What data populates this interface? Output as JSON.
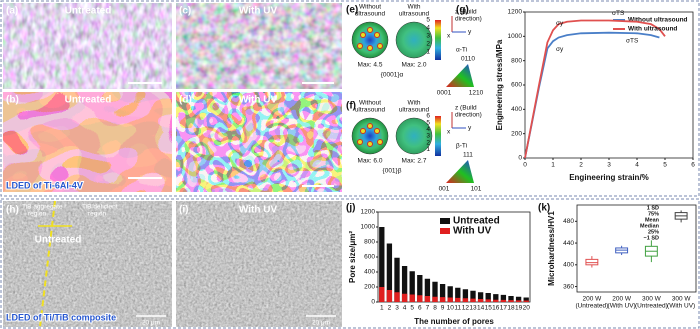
{
  "panels": {
    "a": {
      "label": "(a)",
      "text": "Untreated"
    },
    "b": {
      "label": "(b)",
      "text": "Untreated",
      "footer": "LDED of Ti-6Al-4V"
    },
    "c": {
      "label": "(c)",
      "text": "With UV"
    },
    "d": {
      "label": "(d)",
      "text": "With UV"
    },
    "e": {
      "label": "(e)",
      "left": [
        "Without",
        "ultrasound"
      ],
      "right": [
        "With",
        "ultrasound"
      ],
      "left_max": "Max: 4.5",
      "right_max": "Max: 2.0",
      "plane": "{0001}α",
      "colorbar": [
        1,
        2,
        3,
        4,
        5
      ],
      "axis_z": [
        "z (Build",
        "direction)"
      ],
      "axis_x": "x",
      "axis_y": "y",
      "phase": "α-Ti",
      "triangle": [
        "0110",
        "0001",
        "1210"
      ]
    },
    "f": {
      "label": "(f)",
      "left": [
        "Without",
        "ultrasound"
      ],
      "right": [
        "With",
        "ultrasound"
      ],
      "left_max": "Max: 6.0",
      "right_max": "Max: 2.7",
      "plane": "{001}β",
      "colorbar": [
        1,
        2,
        3,
        4,
        5,
        6
      ],
      "axis_z": [
        "z (Build",
        "direction)"
      ],
      "axis_x": "x",
      "axis_y": "y",
      "phase": "β-Ti",
      "triangle": [
        "111",
        "001",
        "101"
      ]
    },
    "h": {
      "label": "(h)",
      "left_region": [
        "TiB aggregate",
        "region"
      ],
      "right_region": [
        "TiB deficient",
        "region"
      ],
      "text": "Untreated",
      "scale": "20 μm",
      "footer": "LDED of Ti/TiB composite"
    },
    "i": {
      "label": "(i)",
      "text": "With UV",
      "scale": "20 μm"
    }
  },
  "chart_data": [
    {
      "type": "line",
      "label": "(g)",
      "x_label": "Engineering strain/%",
      "y_label": "Engineering stress/MPa",
      "xlim": [
        0,
        6
      ],
      "xticks": [
        0,
        1,
        2,
        3,
        4,
        5,
        6
      ],
      "ylim": [
        0,
        1200
      ],
      "yticks": [
        0,
        200,
        400,
        600,
        800,
        1000,
        1200
      ],
      "annotations": [
        "σy",
        "σTS",
        "σy",
        "σTS"
      ],
      "legend": "upper right",
      "series": [
        {
          "name": "Without ultrasound",
          "color": "#4a7fc8",
          "x": [
            0,
            0.5,
            0.8,
            1.0,
            1.2,
            1.5,
            2,
            3,
            4,
            4.5,
            4.8
          ],
          "values": [
            0,
            580,
            900,
            960,
            990,
            1010,
            1025,
            1030,
            1025,
            1010,
            990
          ]
        },
        {
          "name": "With ultrasound",
          "color": "#e0504f",
          "x": [
            0,
            0.5,
            0.8,
            1.0,
            1.2,
            1.5,
            2,
            3,
            4,
            4.5,
            4.8,
            5.0
          ],
          "values": [
            0,
            600,
            950,
            1050,
            1100,
            1120,
            1130,
            1130,
            1120,
            1100,
            1060,
            1000
          ]
        }
      ]
    },
    {
      "type": "bar",
      "label": "(j)",
      "x_label": "The number of pores",
      "y_label": "Pore size/μm²",
      "categories": [
        1,
        2,
        3,
        4,
        5,
        6,
        7,
        8,
        9,
        10,
        11,
        12,
        13,
        14,
        15,
        16,
        17,
        18,
        19,
        20
      ],
      "ylim": [
        0,
        1200
      ],
      "yticks": [
        0,
        200,
        400,
        600,
        800,
        1000,
        1200
      ],
      "series": [
        {
          "name": "Untreated",
          "color": "#111111",
          "values": [
            1000,
            780,
            590,
            480,
            410,
            360,
            310,
            270,
            240,
            210,
            190,
            170,
            150,
            130,
            120,
            105,
            95,
            80,
            70,
            60
          ]
        },
        {
          "name": "With UV",
          "color": "#e02020",
          "values": [
            200,
            160,
            130,
            110,
            100,
            90,
            80,
            70,
            65,
            60,
            55,
            50,
            45,
            40,
            35,
            30,
            28,
            25,
            22,
            20
          ]
        }
      ]
    },
    {
      "type": "box",
      "label": "(k)",
      "y_label": "Microhardness/HV1",
      "categories": [
        [
          "200 W",
          "(Untreated)"
        ],
        [
          "200 W",
          "(With UV)"
        ],
        [
          "300 W",
          "(Untreated)"
        ],
        [
          "300 W",
          "(With UV)"
        ]
      ],
      "ylim": [
        350,
        510
      ],
      "yticks": [
        360,
        400,
        440,
        480
      ],
      "legend_items": [
        "1 SD",
        "75%",
        "Mean",
        "Median",
        "25%",
        "−1 SD"
      ],
      "colors": [
        "#e05050",
        "#4060c0",
        "#40a040",
        "#404040"
      ],
      "boxes": [
        {
          "low": 395,
          "q1": 400,
          "median": 404,
          "q3": 410,
          "high": 416
        },
        {
          "low": 418,
          "q1": 422,
          "median": 427,
          "q3": 431,
          "high": 435
        },
        {
          "low": 405,
          "q1": 416,
          "median": 425,
          "q3": 434,
          "high": 445
        },
        {
          "low": 478,
          "q1": 484,
          "median": 490,
          "q3": 496,
          "high": 500
        }
      ]
    }
  ]
}
